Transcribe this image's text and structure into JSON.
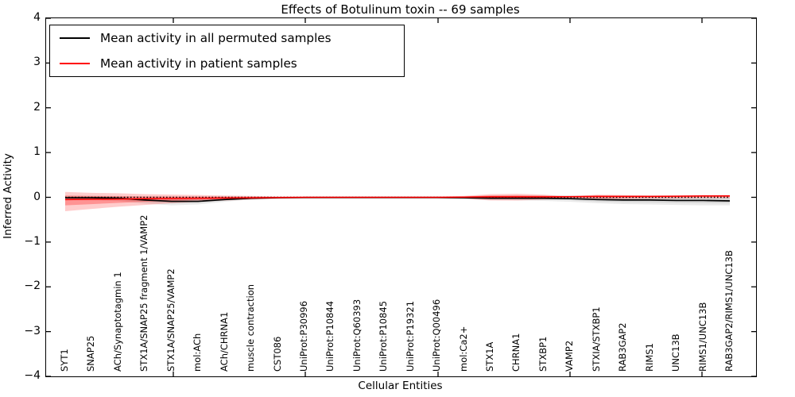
{
  "title": "Effects of Botulinum toxin -- 69 samples",
  "axes": {
    "ylabel": "Inferred Activity",
    "xlabel": "Cellular Entities",
    "yticks": [
      "4",
      "3",
      "2",
      "1",
      "0",
      "−1",
      "−2",
      "−3",
      "−4"
    ]
  },
  "legend": {
    "entries": [
      {
        "label": "Mean activity in all permuted samples",
        "color": "#000000"
      },
      {
        "label": "Mean activity in patient samples",
        "color": "#ff0000"
      }
    ]
  },
  "chart_data": {
    "type": "line",
    "title": "Effects of Botulinum toxin -- 69 samples",
    "xlabel": "Cellular Entities",
    "ylabel": "Inferred Activity",
    "ylim": [
      -4,
      4
    ],
    "grid": false,
    "legend_position": "upper left",
    "categories": [
      "SYT1",
      "SNAP25",
      "ACh/Synaptotagmin 1",
      "STX1A/SNAP25 fragment 1/VAMP2",
      "STX1A/SNAP25/VAMP2",
      "mol:ACh",
      "ACh/CHRNA1",
      "muscle contraction",
      "CST086",
      "UniProt:P30996",
      "UniProt:P10844",
      "UniProt:Q60393",
      "UniProt:P10845",
      "UniProt:P19321",
      "UniProt:Q00496",
      "mol:Ca2+",
      "STX1A",
      "CHRNA1",
      "STXBP1",
      "VAMP2",
      "STXIA/STXBP1",
      "RAB3GAP2",
      "RIMS1",
      "UNC13B",
      "RIMS1/UNC13B",
      "RAB3GAP2/RIMS1/UNC13B"
    ],
    "series": [
      {
        "name": "Mean activity in all permuted samples",
        "color": "#000000",
        "style": "solid",
        "values": [
          -0.01,
          -0.01,
          -0.02,
          -0.06,
          -0.09,
          -0.09,
          -0.05,
          -0.02,
          -0.01,
          -0.005,
          -0.005,
          -0.005,
          -0.005,
          -0.005,
          -0.005,
          -0.01,
          -0.02,
          -0.02,
          -0.02,
          -0.03,
          -0.05,
          -0.06,
          -0.06,
          -0.07,
          -0.07,
          -0.08
        ]
      },
      {
        "name": "Mean activity in patient samples",
        "color": "#ff0000",
        "style": "solid",
        "values": [
          -0.05,
          -0.045,
          -0.04,
          -0.03,
          -0.025,
          -0.02,
          -0.015,
          -0.01,
          -0.005,
          0,
          0,
          0,
          0,
          0,
          0,
          0.005,
          0.01,
          0.01,
          0.01,
          0.015,
          0.02,
          0.02,
          0.02,
          0.025,
          0.03,
          0.03
        ]
      },
      {
        "name": "zero-reference",
        "color": "#000000",
        "style": "dotted",
        "values": [
          0,
          0,
          0,
          0,
          0,
          0,
          0,
          0,
          0,
          0,
          0,
          0,
          0,
          0,
          0,
          0,
          0,
          0,
          0,
          0,
          0,
          0,
          0,
          0,
          0,
          0
        ]
      }
    ],
    "bands": [
      {
        "name": "permuted-spread",
        "color": "#555555",
        "mean_of": 0,
        "upper": [
          0.04,
          0.04,
          0.03,
          0.02,
          0.02,
          0.02,
          0.02,
          0.02,
          0.015,
          0.015,
          0.015,
          0.015,
          0.015,
          0.015,
          0.015,
          0.02,
          0.04,
          0.04,
          0.04,
          0.04,
          0.04,
          0.04,
          0.04,
          0.04,
          0.04,
          0.05
        ],
        "lower": [
          -0.06,
          -0.06,
          -0.08,
          -0.14,
          -0.18,
          -0.16,
          -0.1,
          -0.05,
          -0.03,
          -0.025,
          -0.025,
          -0.025,
          -0.025,
          -0.025,
          -0.025,
          -0.04,
          -0.06,
          -0.07,
          -0.08,
          -0.1,
          -0.13,
          -0.15,
          -0.16,
          -0.17,
          -0.18,
          -0.18
        ]
      },
      {
        "name": "patient-spread",
        "color": "#ff0000",
        "mean_of": 1,
        "upper": [
          0.12,
          0.1,
          0.09,
          0.07,
          0.06,
          0.05,
          0.04,
          0.03,
          0.02,
          0.015,
          0.015,
          0.015,
          0.015,
          0.015,
          0.015,
          0.03,
          0.07,
          0.08,
          0.06,
          0.02,
          0.06,
          0.05,
          0.04,
          0.04,
          0.04,
          0.05
        ],
        "lower": [
          -0.31,
          -0.26,
          -0.21,
          -0.17,
          -0.13,
          -0.1,
          -0.07,
          -0.05,
          -0.03,
          -0.02,
          -0.02,
          -0.02,
          -0.02,
          -0.02,
          -0.02,
          -0.03,
          -0.07,
          -0.07,
          -0.05,
          -0.02,
          -0.05,
          -0.04,
          -0.03,
          -0.03,
          -0.02,
          -0.02
        ]
      }
    ]
  }
}
